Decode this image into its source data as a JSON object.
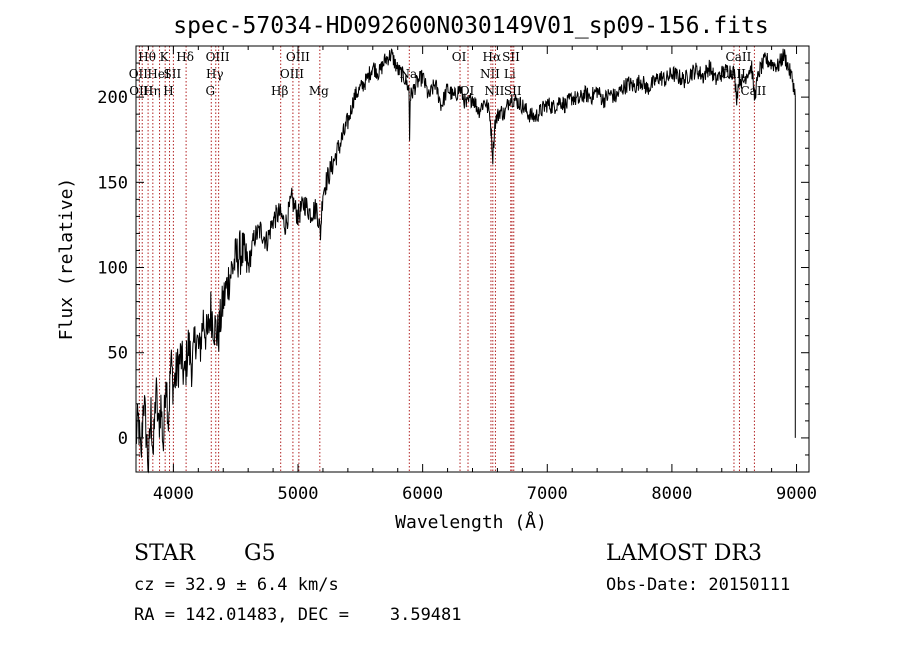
{
  "chart_data": {
    "type": "line",
    "title": "spec-57034-HD092600N030149V01_sp09-156.fits",
    "xlabel": "Wavelength (Å)",
    "ylabel": "Flux (relative)",
    "xlim": [
      3700,
      9100
    ],
    "ylim": [
      -20,
      230
    ],
    "xticks": [
      4000,
      5000,
      6000,
      7000,
      8000,
      9000
    ],
    "yticks": [
      0,
      50,
      100,
      150,
      200
    ],
    "grid": false,
    "series": [
      {
        "name": "flux",
        "x": [
          3700,
          3720,
          3740,
          3760,
          3780,
          3800,
          3820,
          3840,
          3860,
          3880,
          3900,
          3920,
          3940,
          3960,
          3980,
          4000,
          4030,
          4060,
          4090,
          4120,
          4150,
          4180,
          4210,
          4240,
          4270,
          4300,
          4330,
          4360,
          4400,
          4450,
          4500,
          4550,
          4600,
          4650,
          4700,
          4750,
          4800,
          4850,
          4900,
          4950,
          5000,
          5050,
          5100,
          5150,
          5180,
          5200,
          5250,
          5300,
          5350,
          5400,
          5450,
          5500,
          5550,
          5600,
          5650,
          5700,
          5750,
          5800,
          5850,
          5890,
          5895,
          5900,
          5950,
          6000,
          6050,
          6100,
          6150,
          6200,
          6250,
          6300,
          6350,
          6400,
          6450,
          6500,
          6540,
          6563,
          6580,
          6620,
          6660,
          6700,
          6750,
          6800,
          6850,
          6900,
          6950,
          7000,
          7050,
          7100,
          7150,
          7200,
          7250,
          7300,
          7350,
          7400,
          7450,
          7500,
          7550,
          7600,
          7650,
          7700,
          7750,
          7800,
          7850,
          7900,
          7950,
          8000,
          8050,
          8100,
          8150,
          8200,
          8250,
          8300,
          8350,
          8400,
          8450,
          8498,
          8520,
          8542,
          8570,
          8600,
          8640,
          8662,
          8700,
          8750,
          8800,
          8850,
          8900,
          8950,
          8970,
          8990
        ],
        "values": [
          0,
          10,
          -15,
          25,
          5,
          -18,
          15,
          -10,
          30,
          5,
          20,
          -5,
          40,
          10,
          45,
          30,
          40,
          48,
          35,
          55,
          42,
          60,
          50,
          70,
          58,
          75,
          65,
          60,
          80,
          95,
          105,
          110,
          100,
          118,
          122,
          115,
          128,
          132,
          125,
          140,
          130,
          138,
          132,
          135,
          120,
          145,
          155,
          165,
          175,
          185,
          200,
          205,
          210,
          218,
          214,
          222,
          225,
          216,
          212,
          205,
          175,
          200,
          208,
          212,
          200,
          208,
          195,
          205,
          200,
          205,
          195,
          200,
          192,
          198,
          190,
          165,
          185,
          192,
          190,
          200,
          198,
          195,
          190,
          188,
          192,
          196,
          194,
          198,
          195,
          200,
          198,
          202,
          200,
          204,
          198,
          202,
          200,
          205,
          208,
          206,
          210,
          205,
          208,
          212,
          210,
          214,
          212,
          210,
          214,
          216,
          212,
          218,
          210,
          214,
          216,
          215,
          200,
          212,
          208,
          214,
          218,
          200,
          215,
          222,
          220,
          218,
          225,
          214,
          210,
          200
        ]
      }
    ],
    "line_markers": [
      {
        "w": 3727,
        "lines": [
          "OII"
        ],
        "row": [
          2
        ]
      },
      {
        "w": 3750,
        "lines": [
          "OIII"
        ],
        "row": [
          3
        ]
      },
      {
        "w": 3797,
        "lines": [
          "Hθ"
        ],
        "row": [
          1
        ]
      },
      {
        "w": 3835,
        "lines": [
          "Hη"
        ],
        "row": [
          3
        ]
      },
      {
        "w": 3889,
        "lines": [
          "HeI"
        ],
        "row": [
          2
        ]
      },
      {
        "w": 3934,
        "lines": [
          "K"
        ],
        "row": [
          1
        ]
      },
      {
        "w": 3969,
        "lines": [
          "H"
        ],
        "row": [
          3
        ]
      },
      {
        "w": 4000,
        "lines": [
          "SII"
        ],
        "row": [
          2
        ]
      },
      {
        "w": 4102,
        "lines": [
          "Hδ"
        ],
        "row": [
          1
        ]
      },
      {
        "w": 4304,
        "lines": [
          "G"
        ],
        "row": [
          3
        ]
      },
      {
        "w": 4340,
        "lines": [
          "Hγ"
        ],
        "row": [
          2
        ]
      },
      {
        "w": 4363,
        "lines": [
          "OIII"
        ],
        "row": [
          1
        ]
      },
      {
        "w": 4861,
        "lines": [
          "Hβ"
        ],
        "row": [
          3
        ]
      },
      {
        "w": 4959,
        "lines": [
          "OIII"
        ],
        "row": [
          2
        ]
      },
      {
        "w": 5007,
        "lines": [
          "OIII"
        ],
        "row": [
          1
        ]
      },
      {
        "w": 5175,
        "lines": [
          "Mg"
        ],
        "row": [
          3
        ]
      },
      {
        "w": 5893,
        "lines": [
          "Na"
        ],
        "row": [
          2
        ]
      },
      {
        "w": 6300,
        "lines": [
          "OI"
        ],
        "row": [
          1
        ]
      },
      {
        "w": 6364,
        "lines": [
          "OI"
        ],
        "row": [
          3
        ]
      },
      {
        "w": 6548,
        "lines": [
          "NII"
        ],
        "row": [
          2
        ]
      },
      {
        "w": 6563,
        "lines": [
          "Hα"
        ],
        "row": [
          1
        ]
      },
      {
        "w": 6584,
        "lines": [
          "NII"
        ],
        "row": [
          3
        ]
      },
      {
        "w": 6707,
        "lines": [
          "Li"
        ],
        "row": [
          2
        ]
      },
      {
        "w": 6717,
        "lines": [
          "SII"
        ],
        "row": [
          1
        ]
      },
      {
        "w": 6731,
        "lines": [
          "SII"
        ],
        "row": [
          3
        ]
      },
      {
        "w": 8498,
        "lines": [
          "CaII"
        ],
        "row": [
          2
        ]
      },
      {
        "w": 8542,
        "lines": [
          "CaII"
        ],
        "row": [
          1
        ]
      },
      {
        "w": 8662,
        "lines": [
          "CaII"
        ],
        "row": [
          3
        ]
      }
    ]
  },
  "info": {
    "class": "STAR",
    "subclass": "G5",
    "survey": "LAMOST DR3",
    "cz": "cz = 32.9 ± 6.4 km/s",
    "obs_date": "Obs-Date: 20150111",
    "coords": "RA = 142.01483, DEC =    3.59481"
  },
  "colors": {
    "line": "#000000",
    "marker": "#b22222",
    "background": "#ffffff"
  }
}
